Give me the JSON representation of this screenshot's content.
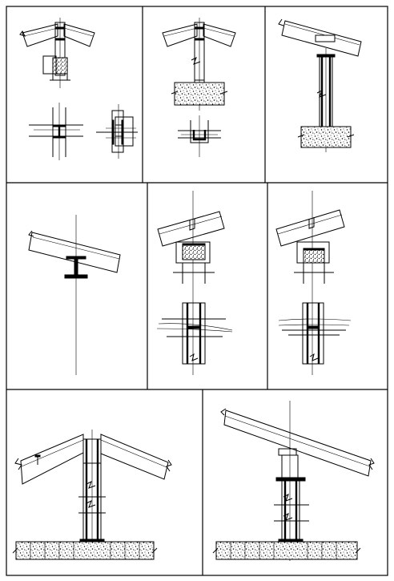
{
  "sheet": {
    "background": "#ffffff",
    "line_color": "#000000",
    "panel_count": 8,
    "panels": [
      {
        "id": "p1",
        "description_visible": false
      },
      {
        "id": "p2",
        "description_visible": false
      },
      {
        "id": "p3",
        "description_visible": false
      },
      {
        "id": "p4",
        "description_visible": false
      },
      {
        "id": "p5",
        "description_visible": false
      },
      {
        "id": "p6",
        "description_visible": false
      },
      {
        "id": "p7",
        "description_visible": false
      },
      {
        "id": "p8",
        "description_visible": false
      }
    ]
  }
}
